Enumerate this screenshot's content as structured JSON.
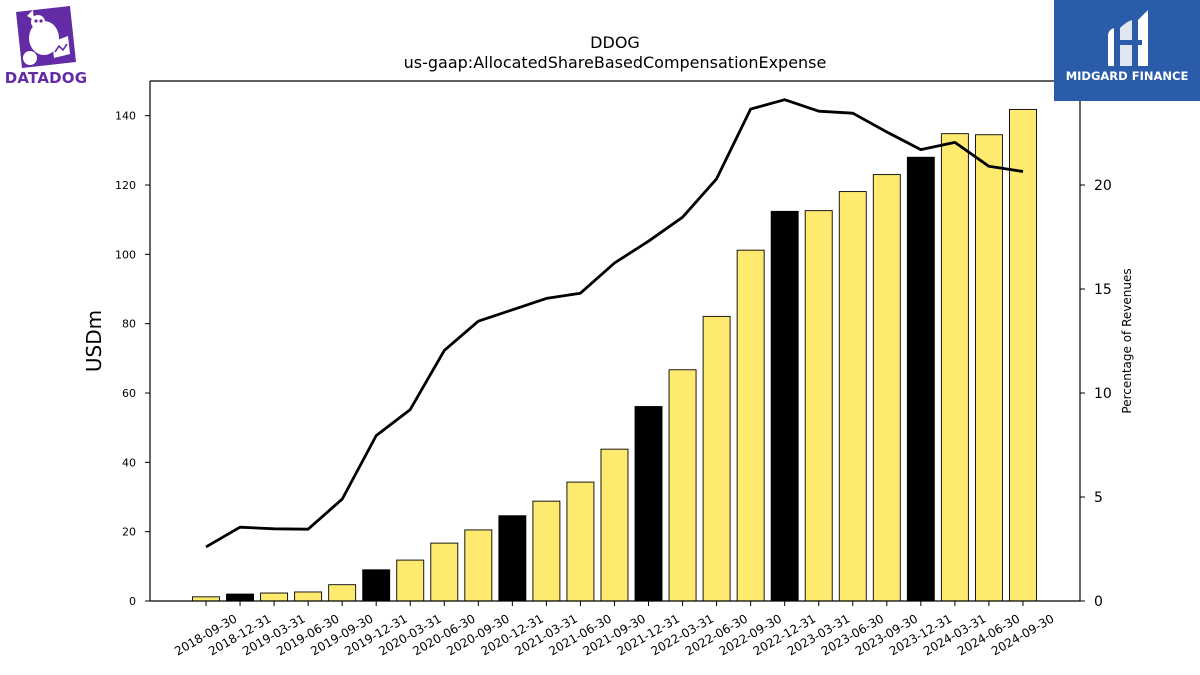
{
  "brands": {
    "left_logo_text": "DATADOG",
    "right_logo_text": "MIDGARD FINANCE"
  },
  "colors": {
    "bar_default": "#ffea70",
    "bar_highlight": "#000000",
    "line": "#000000",
    "datadog_purple": "#632ca6",
    "midgard_blue": "#2a5caa"
  },
  "chart_data": {
    "type": "bar",
    "title": "DDOG",
    "subtitle": "us-gaap:AllocatedShareBasedCompensationExpense",
    "ylabel": "USDm",
    "y2label": "Percentage of Revenues",
    "ylim": [
      0,
      150
    ],
    "y2lim": [
      0,
      25
    ],
    "yticks": [
      0,
      20,
      40,
      60,
      80,
      100,
      120,
      140
    ],
    "y2ticks": [
      0,
      5,
      10,
      15,
      20
    ],
    "grid": false,
    "categories": [
      "2018-09-30",
      "2018-12-31",
      "2019-03-31",
      "2019-06-30",
      "2019-09-30",
      "2019-12-31",
      "2020-03-31",
      "2020-06-30",
      "2020-09-30",
      "2020-12-31",
      "2021-03-31",
      "2021-06-30",
      "2021-09-30",
      "2021-12-31",
      "2022-03-31",
      "2022-06-30",
      "2022-09-30",
      "2022-12-31",
      "2023-03-31",
      "2023-06-30",
      "2023-09-30",
      "2023-12-31",
      "2024-03-31",
      "2024-06-30",
      "2024-09-30"
    ],
    "highlighted_categories": [
      "2018-12-31",
      "2019-12-31",
      "2020-12-31",
      "2021-12-31",
      "2022-12-31",
      "2023-12-31"
    ],
    "series": [
      {
        "type": "bar",
        "axis": "left",
        "values": [
          1.2,
          2.0,
          2.3,
          2.6,
          4.7,
          9.0,
          11.8,
          16.7,
          20.5,
          24.6,
          28.8,
          34.3,
          43.8,
          56.1,
          66.7,
          82.1,
          101.2,
          112.4,
          112.6,
          118.1,
          123.0,
          128.0,
          134.8,
          134.5,
          141.8
        ]
      },
      {
        "type": "line",
        "axis": "right",
        "values": [
          2.6,
          3.55,
          3.47,
          3.45,
          4.9,
          7.95,
          9.2,
          12.05,
          13.45,
          14.0,
          14.55,
          14.8,
          16.25,
          17.3,
          18.45,
          20.3,
          23.65,
          24.1,
          23.55,
          23.45,
          22.55,
          21.7,
          22.05,
          20.9,
          20.65
        ]
      }
    ]
  }
}
